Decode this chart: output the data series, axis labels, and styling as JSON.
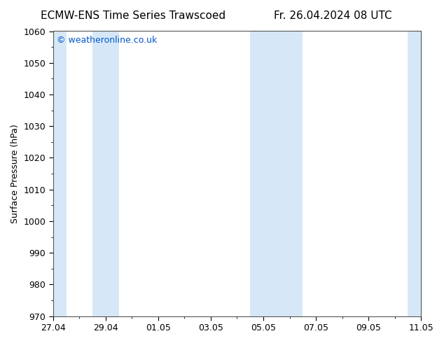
{
  "title_left": "ECMW-ENS Time Series Trawscoed",
  "title_right": "Fr. 26.04.2024 08 UTC",
  "ylabel": "Surface Pressure (hPa)",
  "ylim": [
    970,
    1060
  ],
  "yticks": [
    970,
    980,
    990,
    1000,
    1010,
    1020,
    1030,
    1040,
    1050,
    1060
  ],
  "x_tick_labels": [
    "27.04",
    "29.04",
    "01.05",
    "03.05",
    "05.05",
    "07.05",
    "09.05",
    "11.05"
  ],
  "x_tick_positions": [
    0,
    2,
    4,
    6,
    8,
    10,
    12,
    14
  ],
  "x_total_days": 14,
  "band_color": "#d6e8f7",
  "band_positions": [
    -0.5,
    1.5,
    7.5,
    8.5,
    13.5
  ],
  "band_widths": [
    1.0,
    1.0,
    1.0,
    1.0,
    0.5
  ],
  "background_color": "#ffffff",
  "copyright_text": "© weatheronline.co.uk",
  "copyright_color": "#0055cc",
  "title_fontsize": 11,
  "ylabel_fontsize": 9,
  "tick_fontsize": 9,
  "copyright_fontsize": 9
}
